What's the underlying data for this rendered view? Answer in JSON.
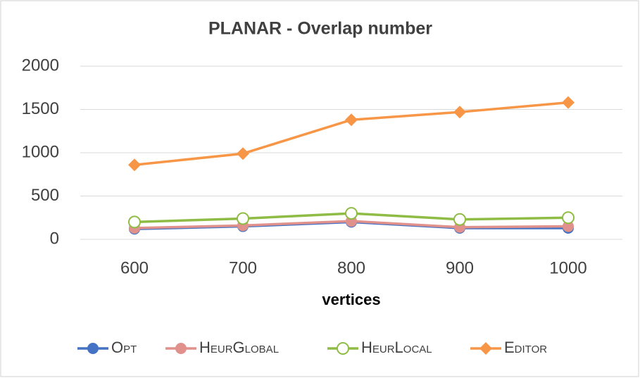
{
  "chart_data": {
    "type": "line",
    "title": "PLANAR - Overlap number",
    "x_label": "vertices",
    "categories": [
      "600",
      "700",
      "800",
      "900",
      "1000"
    ],
    "series": [
      {
        "name": "Opt",
        "color": "#4472c4",
        "marker": "circle",
        "values": [
          120,
          150,
          200,
          130,
          130
        ]
      },
      {
        "name": "HeurGlobal",
        "color": "#e0918b",
        "marker": "circle",
        "values": [
          130,
          160,
          210,
          140,
          150
        ]
      },
      {
        "name": "HeurLocal",
        "color": "#8fbc45",
        "marker": "open-circle",
        "values": [
          200,
          240,
          300,
          230,
          250
        ]
      },
      {
        "name": "Editor",
        "color": "#f79646",
        "marker": "diamond",
        "values": [
          860,
          990,
          1380,
          1470,
          1580
        ]
      }
    ],
    "ylim": [
      0,
      2000
    ],
    "yticks": [
      0,
      500,
      1000,
      1500,
      2000
    ],
    "grid": true,
    "legend": "bottom"
  }
}
